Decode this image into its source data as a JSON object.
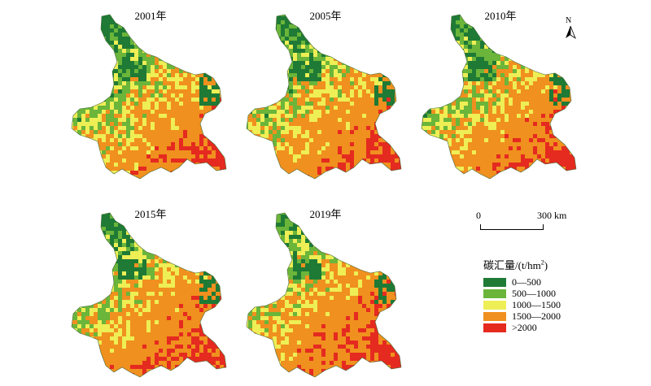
{
  "map": {
    "panels": [
      {
        "year": "2001年"
      },
      {
        "year": "2005年"
      },
      {
        "year": "2010年"
      },
      {
        "year": "2015年"
      },
      {
        "year": "2019年"
      }
    ],
    "north_arrow": {
      "label": "N",
      "icon": "north-arrow-icon"
    },
    "scale_bar": {
      "start": "0",
      "end": "300 km"
    },
    "legend": {
      "title_prefix": "碳汇量/(t/hm",
      "title_sup": "2",
      "title_suffix": ")",
      "classes": [
        {
          "label": "0—500",
          "color": "#1e7a35"
        },
        {
          "label": "500—1000",
          "color": "#6ab53a"
        },
        {
          "label": "1000—1500",
          "color": "#eeee55"
        },
        {
          "label": "1500—2000",
          "color": "#f0901e"
        },
        {
          "label": ">2000",
          "color": "#e52a20"
        }
      ]
    }
  }
}
